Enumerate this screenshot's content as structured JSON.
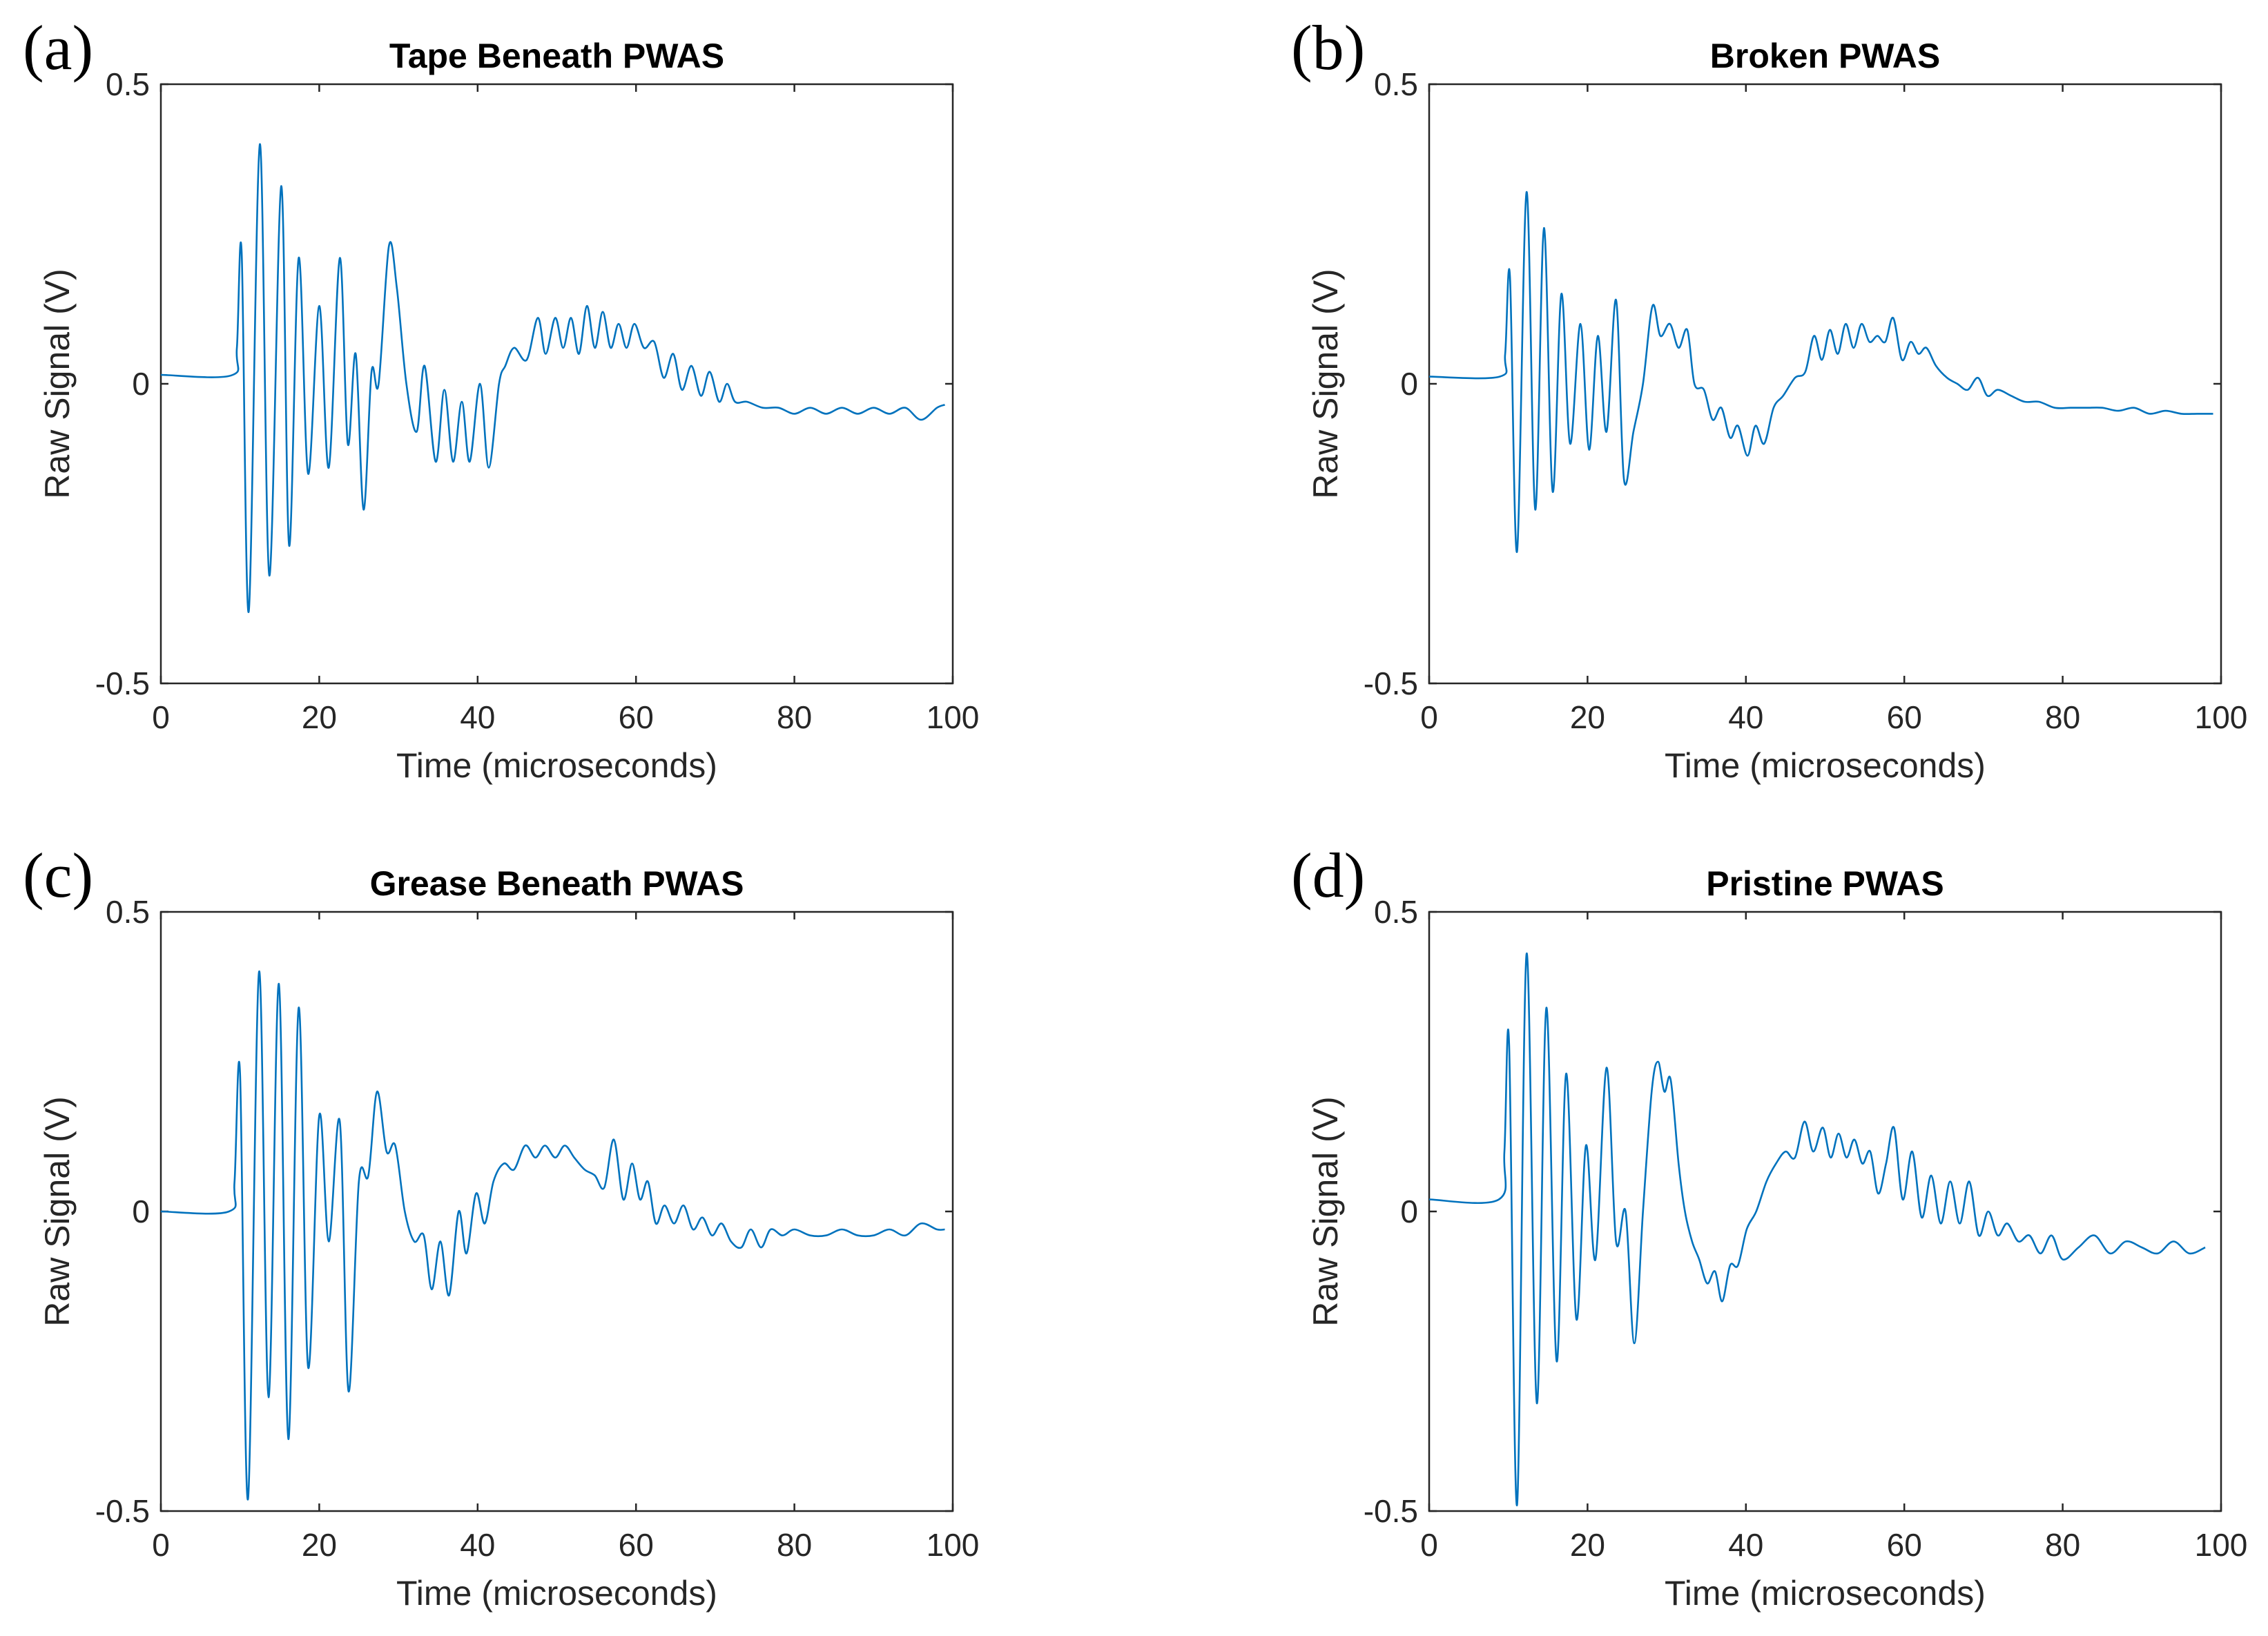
{
  "chart_data": [
    {
      "panel": "(a)",
      "type": "line",
      "title": "Tape Beneath PWAS",
      "xlabel": "Time (microseconds)",
      "ylabel": "Raw Signal (V)",
      "xlim": [
        0,
        100
      ],
      "ylim": [
        -0.5,
        0.5
      ],
      "xticks": [
        0,
        20,
        40,
        60,
        80,
        100
      ],
      "yticks": [
        -0.5,
        0,
        0.5
      ],
      "ytick_labels": [
        "-0.5",
        "0",
        "0.5"
      ],
      "color": "#0072bd",
      "x_end": 99,
      "series": [
        {
          "name": "Tape Beneath PWAS",
          "x": [
            0,
            8.9,
            9.6,
            10.2,
            11.1,
            12.5,
            13.7,
            15.2,
            16.2,
            17.4,
            18.6,
            20,
            21.2,
            22.6,
            23.6,
            24.6,
            25.6,
            26.6,
            27.5,
            28.8,
            29.8,
            31,
            32.3,
            33.3,
            34.7,
            35.8,
            36.9,
            38,
            39,
            40.3,
            41.4,
            42.7,
            43.5,
            44.6,
            46.2,
            47.6,
            48.6,
            49.8,
            50.8,
            51.8,
            52.8,
            53.8,
            54.8,
            55.8,
            56.8,
            57.8,
            58.8,
            59.8,
            61,
            62.3,
            63.5,
            64.7,
            65.8,
            67,
            68.2,
            69.3,
            70.5,
            71.5,
            72.5,
            74,
            76,
            78,
            80,
            82,
            84,
            86,
            88,
            90,
            92,
            94,
            96,
            98,
            99
          ],
          "y": [
            0.015,
            0.014,
            0.06,
            0.22,
            -0.38,
            0.4,
            -0.32,
            0.33,
            -0.27,
            0.21,
            -0.15,
            0.13,
            -0.14,
            0.21,
            -0.1,
            0.05,
            -0.21,
            0.02,
            0.0,
            0.23,
            0.16,
            0.0,
            -0.08,
            0.03,
            -0.13,
            -0.01,
            -0.13,
            -0.03,
            -0.13,
            0.0,
            -0.14,
            0.0,
            0.03,
            0.06,
            0.04,
            0.11,
            0.05,
            0.11,
            0.06,
            0.11,
            0.05,
            0.13,
            0.06,
            0.12,
            0.06,
            0.1,
            0.06,
            0.1,
            0.06,
            0.07,
            0.01,
            0.05,
            -0.01,
            0.03,
            -0.02,
            0.02,
            -0.03,
            0.0,
            -0.03,
            -0.03,
            -0.04,
            -0.04,
            -0.05,
            -0.04,
            -0.05,
            -0.04,
            -0.05,
            -0.04,
            -0.05,
            -0.04,
            -0.06,
            -0.04,
            -0.035
          ]
        }
      ]
    },
    {
      "panel": "(b)",
      "type": "line",
      "title": "Broken PWAS",
      "xlabel": "Time (microseconds)",
      "ylabel": "Raw Signal (V)",
      "xlim": [
        0,
        100
      ],
      "ylim": [
        -0.5,
        0.5
      ],
      "xticks": [
        0,
        20,
        40,
        60,
        80,
        100
      ],
      "yticks": [
        -0.5,
        0,
        0.5
      ],
      "ytick_labels": [
        "-0.5",
        "0",
        "0.5"
      ],
      "color": "#0072bd",
      "x_end": 99,
      "series": [
        {
          "name": "Broken PWAS",
          "x": [
            0,
            8.9,
            9.6,
            10.2,
            11.1,
            12.3,
            13.4,
            14.5,
            15.6,
            16.7,
            17.8,
            19.1,
            20.2,
            21.3,
            22.4,
            23.6,
            24.6,
            25.8,
            27,
            28.2,
            29.2,
            30.4,
            31.5,
            32.6,
            33.5,
            34.7,
            35.8,
            36.9,
            38,
            39,
            40.2,
            41.2,
            42.3,
            43.5,
            44.7,
            46.2,
            47.5,
            48.6,
            49.6,
            50.6,
            51.6,
            52.6,
            53.6,
            54.6,
            55.6,
            56.6,
            57.6,
            58.6,
            59.7,
            60.8,
            61.8,
            62.8,
            64,
            65.4,
            66.7,
            68,
            69.3,
            70.5,
            71.8,
            73.5,
            75.2,
            77,
            79,
            81,
            83,
            85,
            87,
            89,
            91,
            93,
            95,
            97,
            99
          ],
          "y": [
            0.012,
            0.012,
            0.05,
            0.18,
            -0.28,
            0.32,
            -0.21,
            0.26,
            -0.18,
            0.15,
            -0.1,
            0.1,
            -0.11,
            0.08,
            -0.08,
            0.14,
            -0.16,
            -0.08,
            0.0,
            0.13,
            0.08,
            0.1,
            0.06,
            0.09,
            0.0,
            -0.01,
            -0.06,
            -0.04,
            -0.09,
            -0.07,
            -0.12,
            -0.07,
            -0.1,
            -0.04,
            -0.02,
            0.01,
            0.02,
            0.08,
            0.04,
            0.09,
            0.05,
            0.1,
            0.06,
            0.1,
            0.07,
            0.08,
            0.07,
            0.11,
            0.04,
            0.07,
            0.05,
            0.06,
            0.03,
            0.01,
            0.0,
            -0.01,
            0.01,
            -0.02,
            -0.01,
            -0.02,
            -0.03,
            -0.03,
            -0.04,
            -0.04,
            -0.04,
            -0.04,
            -0.045,
            -0.04,
            -0.05,
            -0.045,
            -0.05,
            -0.05,
            -0.05
          ]
        }
      ]
    },
    {
      "panel": "(c)",
      "type": "line",
      "title": "Grease Beneath PWAS",
      "xlabel": "Time (microseconds)",
      "ylabel": "Raw Signal (V)",
      "xlim": [
        0,
        100
      ],
      "ylim": [
        -0.5,
        0.5
      ],
      "xticks": [
        0,
        20,
        40,
        60,
        80,
        100
      ],
      "yticks": [
        -0.5,
        0,
        0.5
      ],
      "ytick_labels": [
        "-0.5",
        "0",
        "0.5"
      ],
      "color": "#0072bd",
      "x_end": 99,
      "series": [
        {
          "name": "Grease Beneath PWAS",
          "x": [
            0,
            8.6,
            9.3,
            10,
            11,
            12.4,
            13.6,
            14.9,
            16.1,
            17.4,
            18.6,
            20,
            21.2,
            22.6,
            23.7,
            25,
            26.2,
            27.3,
            28.5,
            29.6,
            30.8,
            32,
            33.2,
            34.2,
            35.3,
            36.4,
            37.6,
            38.6,
            39.8,
            40.9,
            42,
            43.3,
            44.6,
            46,
            47.3,
            48.5,
            49.8,
            51,
            52.2,
            53.5,
            54.8,
            56,
            57.2,
            58.4,
            59.5,
            60.5,
            61.5,
            62.5,
            63.6,
            64.8,
            66,
            67.2,
            68.4,
            69.6,
            70.8,
            72,
            73.3,
            74.5,
            75.8,
            77,
            78.5,
            80,
            82,
            84,
            86,
            88,
            90,
            92,
            94,
            96,
            98,
            99
          ],
          "y": [
            0.0,
            0.0,
            0.05,
            0.23,
            -0.48,
            0.4,
            -0.31,
            0.38,
            -0.38,
            0.34,
            -0.26,
            0.16,
            -0.05,
            0.15,
            -0.3,
            0.05,
            0.06,
            0.2,
            0.1,
            0.11,
            0.0,
            -0.05,
            -0.04,
            -0.13,
            -0.05,
            -0.14,
            0.0,
            -0.07,
            0.03,
            -0.02,
            0.05,
            0.08,
            0.07,
            0.11,
            0.09,
            0.11,
            0.09,
            0.11,
            0.09,
            0.07,
            0.06,
            0.04,
            0.12,
            0.02,
            0.08,
            0.02,
            0.05,
            -0.02,
            0.01,
            -0.02,
            0.01,
            -0.03,
            -0.01,
            -0.04,
            -0.02,
            -0.05,
            -0.06,
            -0.03,
            -0.06,
            -0.03,
            -0.04,
            -0.03,
            -0.04,
            -0.04,
            -0.03,
            -0.04,
            -0.04,
            -0.03,
            -0.04,
            -0.02,
            -0.03,
            -0.03
          ]
        }
      ]
    },
    {
      "panel": "(d)",
      "type": "line",
      "title": "Pristine PWAS",
      "xlabel": "Time (microseconds)",
      "ylabel": "Raw Signal (V)",
      "xlim": [
        0,
        100
      ],
      "ylim": [
        -0.5,
        0.5
      ],
      "xticks": [
        0,
        20,
        40,
        60,
        80,
        100
      ],
      "yticks": [
        -0.5,
        0,
        0.5
      ],
      "ytick_labels": [
        "-0.5",
        "0",
        "0.5"
      ],
      "color": "#0072bd",
      "x_end": 98,
      "series": [
        {
          "name": "Pristine PWAS",
          "x": [
            0,
            8.8,
            9.5,
            10.1,
            11.1,
            12.3,
            13.6,
            14.8,
            16.1,
            17.3,
            18.6,
            19.8,
            21,
            22.4,
            23.6,
            24.8,
            25.9,
            27,
            28.1,
            28.9,
            29.7,
            30.5,
            31.5,
            32.3,
            33.2,
            34.1,
            35.1,
            36.1,
            37,
            38,
            39,
            40.1,
            41.3,
            42.6,
            43.8,
            45,
            46.2,
            47.4,
            48.5,
            49.7,
            50.7,
            51.7,
            52.7,
            53.7,
            54.7,
            55.7,
            56.7,
            57.7,
            58.7,
            59.8,
            61,
            62.2,
            63.4,
            64.6,
            65.8,
            67,
            68.2,
            69.4,
            70.6,
            71.8,
            73,
            74.4,
            75.8,
            77.2,
            78.6,
            80,
            82,
            84,
            86,
            88,
            90,
            92,
            94,
            96,
            98
          ],
          "y": [
            0.02,
            0.02,
            0.1,
            0.28,
            -0.49,
            0.43,
            -0.32,
            0.34,
            -0.25,
            0.23,
            -0.18,
            0.11,
            -0.08,
            0.24,
            -0.05,
            0.0,
            -0.22,
            0.0,
            0.2,
            0.25,
            0.2,
            0.22,
            0.08,
            0.0,
            -0.05,
            -0.08,
            -0.12,
            -0.1,
            -0.15,
            -0.09,
            -0.09,
            -0.03,
            0.0,
            0.05,
            0.08,
            0.1,
            0.09,
            0.15,
            0.1,
            0.14,
            0.09,
            0.13,
            0.09,
            0.12,
            0.08,
            0.1,
            0.03,
            0.08,
            0.14,
            0.02,
            0.1,
            -0.01,
            0.06,
            -0.02,
            0.05,
            -0.02,
            0.05,
            -0.04,
            0.0,
            -0.04,
            -0.02,
            -0.05,
            -0.04,
            -0.07,
            -0.04,
            -0.08,
            -0.06,
            -0.04,
            -0.07,
            -0.05,
            -0.06,
            -0.07,
            -0.05,
            -0.07,
            -0.06
          ]
        }
      ]
    }
  ]
}
